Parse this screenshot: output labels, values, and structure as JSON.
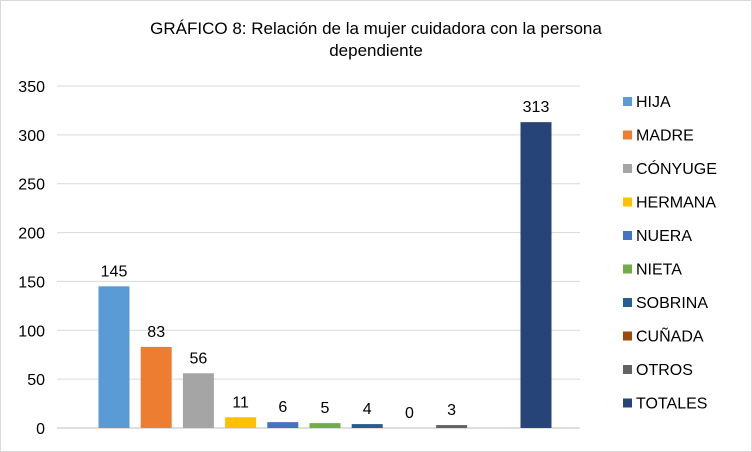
{
  "chart_data": {
    "type": "bar",
    "title": "GRÁFICO 8: Relación de la mujer cuidadora con la persona dependiente",
    "xlabel": "",
    "ylabel": "",
    "ylim": [
      0,
      350
    ],
    "yticks": [
      0,
      50,
      100,
      150,
      200,
      250,
      300,
      350
    ],
    "grid": true,
    "legend_placement": "right",
    "series": [
      {
        "name": "HIJA",
        "values": [
          145
        ],
        "color": "#5b9bd5"
      },
      {
        "name": "MADRE",
        "values": [
          83
        ],
        "color": "#ed7d31"
      },
      {
        "name": "CÓNYUGE",
        "values": [
          56
        ],
        "color": "#a5a5a5"
      },
      {
        "name": "HERMANA",
        "values": [
          11
        ],
        "color": "#ffc000"
      },
      {
        "name": "NUERA",
        "values": [
          6
        ],
        "color": "#4472c4"
      },
      {
        "name": "NIETA",
        "values": [
          5
        ],
        "color": "#70ad47"
      },
      {
        "name": "SOBRINA",
        "values": [
          4
        ],
        "color": "#255e91"
      },
      {
        "name": "CUÑADA",
        "values": [
          0
        ],
        "color": "#9e480e"
      },
      {
        "name": "OTROS",
        "values": [
          3
        ],
        "color": "#636363"
      },
      {
        "name": "TOTALES",
        "values": [
          313
        ],
        "color": "#264478"
      }
    ]
  }
}
